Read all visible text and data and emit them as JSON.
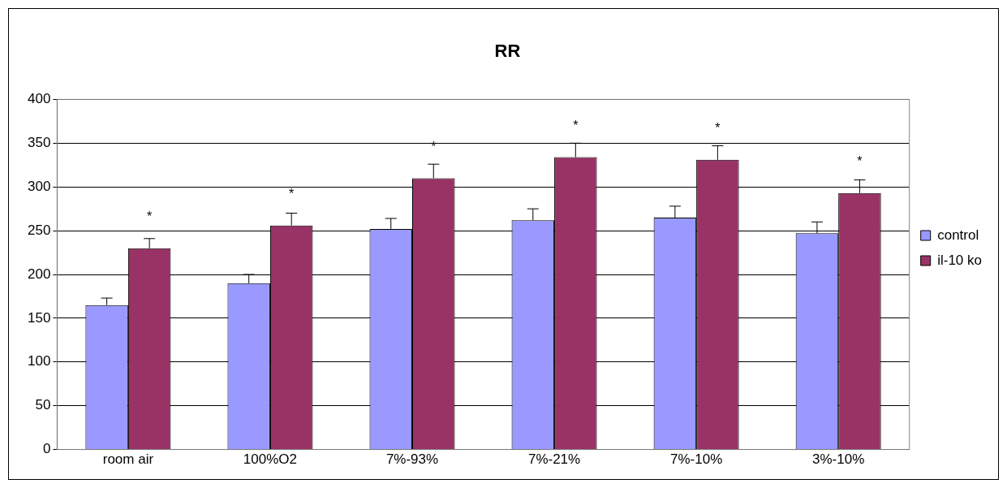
{
  "chart_data": {
    "type": "bar",
    "title": "RR",
    "categories": [
      "room air",
      "100%O2",
      "7%-93%",
      "7%-21%",
      "7%-10%",
      "3%-10%"
    ],
    "series": [
      {
        "name": "control",
        "color": "#9999ff",
        "values": [
          165,
          190,
          252,
          262,
          265,
          247
        ],
        "errors": [
          [
            165,
            173
          ],
          [
            190,
            200
          ],
          [
            252,
            264
          ],
          [
            262,
            275
          ],
          [
            265,
            278
          ],
          [
            247,
            260
          ]
        ]
      },
      {
        "name": "il-10 ko",
        "color": "#993366",
        "values": [
          230,
          256,
          310,
          334,
          331,
          293
        ],
        "errors": [
          [
            230,
            241
          ],
          [
            256,
            270
          ],
          [
            310,
            326
          ],
          [
            334,
            350
          ],
          [
            331,
            347
          ],
          [
            293,
            308
          ]
        ]
      }
    ],
    "ylim": [
      0,
      400
    ],
    "yticks": [
      0,
      50,
      100,
      150,
      200,
      250,
      300,
      350,
      400
    ],
    "grid": "y",
    "legend": "right",
    "annotations": [
      {
        "text": "*",
        "x": "room air",
        "y": 230
      },
      {
        "text": "*",
        "x": "100%O2",
        "y": 256
      },
      {
        "text": "*",
        "x": "7%-93%",
        "y": 310
      },
      {
        "text": "*",
        "x": "7%-21%",
        "y": 334
      },
      {
        "text": "*",
        "x": "7%-10%",
        "y": 331
      },
      {
        "text": "*",
        "x": "3%-10%",
        "y": 293
      }
    ]
  }
}
